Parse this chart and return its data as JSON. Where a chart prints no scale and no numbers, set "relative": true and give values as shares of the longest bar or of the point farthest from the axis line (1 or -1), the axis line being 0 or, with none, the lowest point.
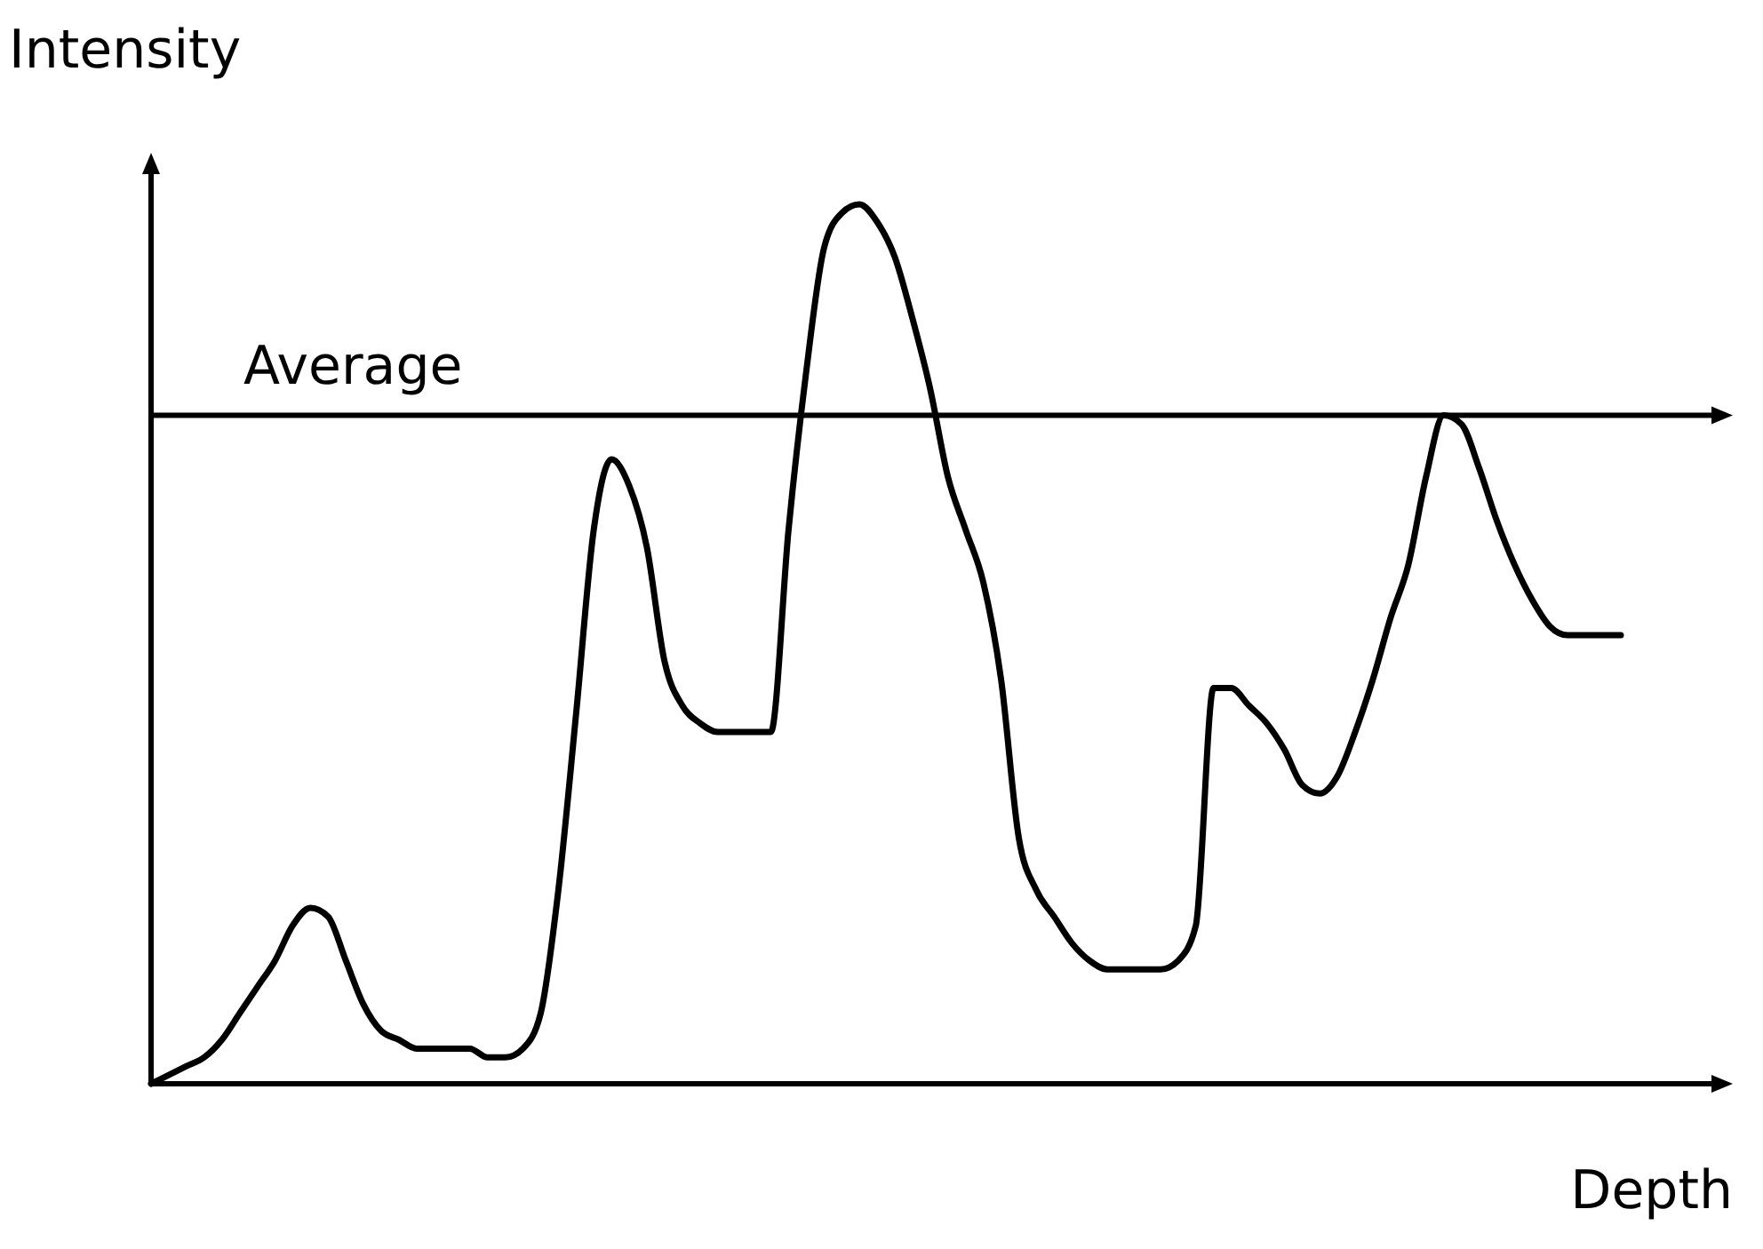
{
  "chart_data": {
    "type": "line",
    "relative": true,
    "xlabel": "Depth",
    "ylabel": "Intensity",
    "categories": [
      null,
      null,
      null,
      null,
      null,
      null,
      null,
      null,
      null,
      null,
      null,
      null,
      null,
      null,
      null,
      null,
      null,
      null,
      null,
      null,
      null,
      null,
      null,
      null,
      null,
      null,
      null,
      null,
      null,
      null,
      null,
      null,
      null,
      null,
      null,
      null,
      null,
      null,
      null,
      null,
      null,
      null,
      null,
      null,
      null,
      null,
      null,
      null,
      null,
      null,
      null,
      null,
      null,
      null,
      null,
      null,
      null,
      null,
      null,
      null,
      null,
      null,
      null,
      null,
      null,
      null,
      null,
      null,
      null,
      null,
      null,
      null,
      null,
      null,
      null,
      null,
      null,
      null,
      null,
      null,
      null,
      null,
      null,
      null
    ],
    "series": [
      {
        "color": "#000000",
        "values": [
          0,
          0.01,
          0.02,
          0.03,
          0.05,
          0.08,
          0.11,
          0.14,
          0.18,
          0.2,
          0.19,
          0.14,
          0.09,
          0.06,
          0.05,
          0.04,
          0.04,
          0.04,
          0.04,
          0.03,
          0.03,
          0.04,
          0.08,
          0.22,
          0.42,
          0.63,
          0.71,
          0.68,
          0.61,
          0.48,
          0.43,
          0.41,
          0.4,
          0.4,
          0.4,
          0.4,
          0.63,
          0.81,
          0.95,
          0.99,
          1,
          0.98,
          0.94,
          0.87,
          0.79,
          0.69,
          0.63,
          0.57,
          0.46,
          0.28,
          0.22,
          0.19,
          0.16,
          0.14,
          0.13,
          0.13,
          0.13,
          0.13,
          0.14,
          0.18,
          0.45,
          0.45,
          0.43,
          0.41,
          0.38,
          0.34,
          0.33,
          0.35,
          0.4,
          0.46,
          0.53,
          0.59,
          0.69,
          0.76,
          0.75,
          0.7,
          0.64,
          0.59,
          0.55,
          0.52,
          0.51,
          0.51,
          0.51,
          0.51
        ]
      }
    ],
    "ref_lines": [
      {
        "axis": "y",
        "value": 0.76,
        "label": "Average",
        "color": "#000000"
      }
    ],
    "line_style": "solid"
  }
}
